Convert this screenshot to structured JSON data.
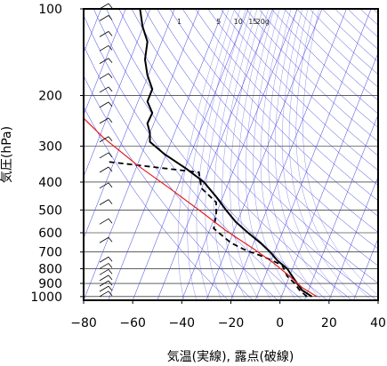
{
  "chart_data": {
    "type": "line",
    "title": "",
    "xlabel": "気温(実線), 露点(破線)",
    "ylabel": "気圧(hPa)",
    "xlim": [
      -80,
      40
    ],
    "ylim": [
      1030,
      100
    ],
    "y_scale": "log",
    "x_ticks": [
      "−80",
      "−60",
      "−40",
      "−20",
      "0",
      "20",
      "40"
    ],
    "x_tick_values": [
      -80,
      -60,
      -40,
      -20,
      0,
      20,
      40
    ],
    "y_ticks": [
      "100",
      "200",
      "300",
      "400",
      "500",
      "600",
      "700",
      "800",
      "900",
      "1000"
    ],
    "y_tick_values": [
      100,
      200,
      300,
      400,
      500,
      600,
      700,
      800,
      900,
      1000
    ],
    "grid": true,
    "mixing_ratio_labels": [
      "1",
      "5",
      "10",
      "15",
      "20g"
    ],
    "mixing_ratio_label_x": [
      -41,
      -25,
      -17,
      -11,
      -7
    ],
    "colors": {
      "temperature": "#000000",
      "dewpoint": "#000000",
      "parcel": "#e02020",
      "adiabats": "#3a3ae0",
      "grid": "#000000"
    },
    "series": [
      {
        "kind": "temperature",
        "points": [
          [
            13,
            1000
          ],
          [
            9,
            950
          ],
          [
            7,
            900
          ],
          [
            5,
            850
          ],
          [
            3,
            800
          ],
          [
            -1,
            750
          ],
          [
            -4,
            700
          ],
          [
            -8,
            650
          ],
          [
            -13,
            600
          ],
          [
            -18,
            550
          ],
          [
            -22,
            500
          ],
          [
            -26,
            450
          ],
          [
            -31,
            400
          ],
          [
            -38,
            360
          ],
          [
            -47,
            320
          ],
          [
            -53,
            290
          ],
          [
            -53,
            270
          ],
          [
            -54,
            250
          ],
          [
            -52,
            230
          ],
          [
            -54,
            210
          ],
          [
            -52,
            190
          ],
          [
            -54,
            170
          ],
          [
            -55,
            150
          ],
          [
            -54,
            130
          ],
          [
            -56,
            115
          ],
          [
            -57,
            100
          ]
        ]
      },
      {
        "kind": "dewpoint",
        "points": [
          [
            11,
            1000
          ],
          [
            8,
            950
          ],
          [
            6,
            900
          ],
          [
            3,
            850
          ],
          [
            1,
            780
          ],
          [
            -3,
            750
          ],
          [
            -8,
            720
          ],
          [
            -14,
            690
          ],
          [
            -20,
            650
          ],
          [
            -27,
            580
          ],
          [
            -26,
            520
          ],
          [
            -26,
            470
          ],
          [
            -32,
            420
          ],
          [
            -33,
            370
          ],
          [
            -70,
            340
          ]
        ]
      },
      {
        "kind": "parcel",
        "points": [
          [
            15,
            1000
          ],
          [
            9,
            930
          ],
          [
            4,
            850
          ],
          [
            -3,
            760
          ],
          [
            -11,
            680
          ],
          [
            -22,
            590
          ],
          [
            -33,
            500
          ],
          [
            -45,
            420
          ],
          [
            -58,
            350
          ],
          [
            -72,
            280
          ],
          [
            -80,
            240
          ]
        ]
      }
    ],
    "wind_barbs": [
      {
        "p": 1000,
        "flags": 0,
        "barbs": 1
      },
      {
        "p": 960,
        "flags": 0,
        "barbs": 1
      },
      {
        "p": 920,
        "flags": 0,
        "barbs": 1
      },
      {
        "p": 880,
        "flags": 0,
        "barbs": 1
      },
      {
        "p": 840,
        "flags": 0,
        "barbs": 1
      },
      {
        "p": 800,
        "flags": 0,
        "barbs": 1
      },
      {
        "p": 760,
        "flags": 0,
        "barbs": 1
      },
      {
        "p": 650,
        "flags": 0,
        "barbs": 1
      },
      {
        "p": 560,
        "flags": 0,
        "barbs": 1
      },
      {
        "p": 480,
        "flags": 0,
        "barbs": 1
      },
      {
        "p": 420,
        "flags": 0,
        "barbs": 1
      },
      {
        "p": 370,
        "flags": 0,
        "barbs": 1
      },
      {
        "p": 330,
        "flags": 0,
        "barbs": 1
      },
      {
        "p": 290,
        "flags": 0,
        "barbs": 1
      },
      {
        "p": 250,
        "flags": 0,
        "barbs": 1
      },
      {
        "p": 220,
        "flags": 0,
        "barbs": 1
      },
      {
        "p": 195,
        "flags": 0,
        "barbs": 1
      },
      {
        "p": 175,
        "flags": 0,
        "barbs": 1
      },
      {
        "p": 155,
        "flags": 0,
        "barbs": 1
      },
      {
        "p": 140,
        "flags": 0,
        "barbs": 1
      },
      {
        "p": 125,
        "flags": 0,
        "barbs": 1
      },
      {
        "p": 110,
        "flags": 0,
        "barbs": 1
      },
      {
        "p": 100,
        "flags": 0,
        "barbs": 1
      }
    ]
  }
}
